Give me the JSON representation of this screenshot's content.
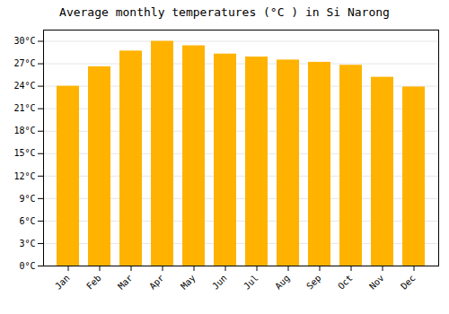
{
  "chart_data": {
    "type": "bar",
    "title": "Average monthly temperatures (°C ) in Si Narong",
    "categories": [
      "Jan",
      "Feb",
      "Mar",
      "Apr",
      "May",
      "Jun",
      "Jul",
      "Aug",
      "Sep",
      "Oct",
      "Nov",
      "Dec"
    ],
    "values": [
      24.0,
      26.6,
      28.7,
      30.0,
      29.4,
      28.3,
      27.9,
      27.5,
      27.2,
      26.8,
      25.2,
      23.9
    ],
    "color": "#FFB300",
    "ylim": [
      0,
      31.5
    ],
    "yticks": [
      {
        "value": 0,
        "label": "0°C"
      },
      {
        "value": 3,
        "label": "3°C"
      },
      {
        "value": 6,
        "label": "6°C"
      },
      {
        "value": 9,
        "label": "9°C"
      },
      {
        "value": 12,
        "label": "12°C"
      },
      {
        "value": 15,
        "label": "15°C"
      },
      {
        "value": 18,
        "label": "18°C"
      },
      {
        "value": 21,
        "label": "21°C"
      },
      {
        "value": 24,
        "label": "24°C"
      },
      {
        "value": 27,
        "label": "27°C"
      },
      {
        "value": 30,
        "label": "30°C"
      }
    ],
    "grid": true
  }
}
